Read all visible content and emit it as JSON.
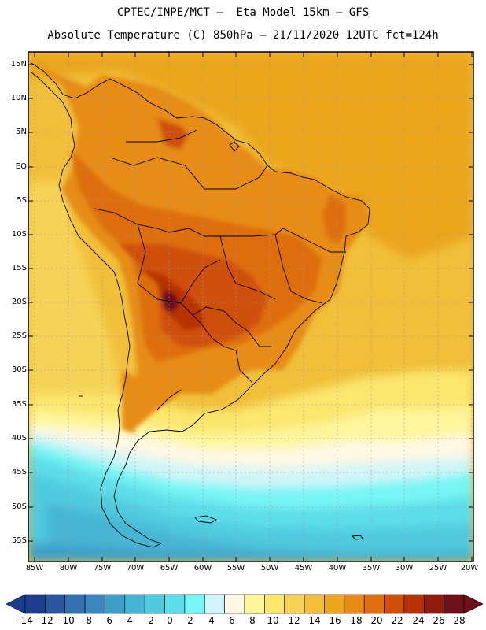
{
  "header": {
    "line1": "CPTEC/INPE/MCT –  Eta Model 15km – GFS",
    "line2": "Absolute Temperature (C) 850hPa – 21/11/2020 12UTC fct=124h"
  },
  "map": {
    "lat_labels": [
      "15N",
      "10N",
      "5N",
      "EQ",
      "5S",
      "10S",
      "15S",
      "20S",
      "25S",
      "30S",
      "35S",
      "40S",
      "45S",
      "50S",
      "55S"
    ],
    "lon_labels": [
      "85W",
      "80W",
      "75W",
      "70W",
      "65W",
      "60W",
      "55W",
      "50W",
      "45W",
      "40W",
      "35W",
      "30W",
      "25W",
      "20W"
    ]
  },
  "colorbar": {
    "labels": [
      "-14",
      "-12",
      "-10",
      "-8",
      "-6",
      "-4",
      "-2",
      "0",
      "2",
      "4",
      "6",
      "8",
      "10",
      "12",
      "14",
      "16",
      "18",
      "20",
      "22",
      "24",
      "26",
      "28"
    ],
    "colors": [
      "#1e3c8c",
      "#2a569f",
      "#3470ae",
      "#3c86bd",
      "#3e9ec8",
      "#46b5d4",
      "#50cadf",
      "#5ddde9",
      "#78f5f5",
      "#d0f5f8",
      "#fff8e4",
      "#fff59c",
      "#fbe66e",
      "#f6d357",
      "#f1bf3a",
      "#eba61b",
      "#e78c15",
      "#de6e0e",
      "#cf4f08",
      "#b73006",
      "#8e1c10",
      "#6d0f1c"
    ],
    "min_arrow_color": "#1e3c8c",
    "max_arrow_color": "#6d0f1c"
  },
  "colors": {
    "frame": "#000000",
    "land_border": "#000000",
    "grid": "#9a9a9a"
  }
}
